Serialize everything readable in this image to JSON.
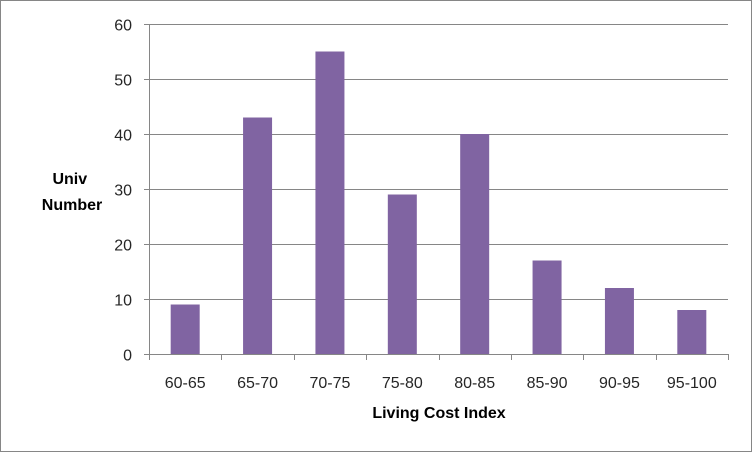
{
  "chart_data": {
    "type": "bar",
    "title": "",
    "xlabel": "Living Cost Index",
    "ylabel": [
      "Univ",
      "Number"
    ],
    "categories": [
      "60-65",
      "65-70",
      "70-75",
      "75-80",
      "80-85",
      "85-90",
      "90-95",
      "95-100"
    ],
    "values": [
      9,
      43,
      55,
      29,
      40,
      17,
      12,
      8
    ],
    "ylim": [
      0,
      60
    ],
    "yticks": [
      "0",
      "10",
      "20",
      "30",
      "40",
      "50",
      "60"
    ],
    "grid": true,
    "legend": "none",
    "colors": {
      "bar": "#8064A2",
      "grid": "#868686",
      "axis": "#868686",
      "text": "#262626"
    }
  }
}
